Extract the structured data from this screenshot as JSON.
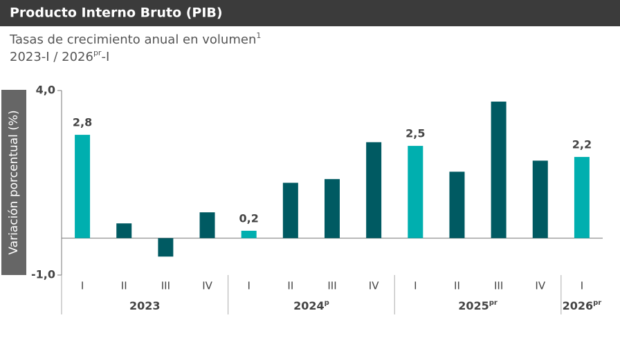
{
  "chart_data": {
    "type": "bar",
    "title": "Producto Interno Bruto (PIB)",
    "subtitle": {
      "text": "Tasas de crecimiento anual en volumen",
      "note": "1"
    },
    "period": {
      "start": "2023-I / 2026",
      "superscript": "pr",
      "end": "-I"
    },
    "y_label": "Variación porcentual (%)",
    "groups": [
      {
        "label": "2023",
        "categories": [
          "I",
          "II",
          "III",
          "IV"
        ]
      },
      {
        "label": "2024",
        "superscript": "p",
        "categories": [
          "I",
          "II",
          "III",
          "IV"
        ]
      },
      {
        "label": "2025",
        "superscript": "pr",
        "categories": [
          "I",
          "II",
          "III",
          "IV"
        ]
      },
      {
        "label": "2026",
        "superscript": "pr",
        "categories": [
          "I"
        ]
      }
    ],
    "values": [
      2.8,
      0.4,
      -0.5,
      0.7,
      0.2,
      1.5,
      1.6,
      2.6,
      2.5,
      1.8,
      3.7,
      2.1,
      2.2
    ],
    "value_labels": [
      "2,8",
      null,
      null,
      null,
      "0,2",
      null,
      null,
      null,
      "2,5",
      null,
      null,
      null,
      "2,2"
    ],
    "colors": [
      "#00afaf",
      "#005a62",
      "#005a62",
      "#005a62",
      "#00afaf",
      "#005a62",
      "#005a62",
      "#005a62",
      "#00afaf",
      "#005a62",
      "#005a62",
      "#005a62",
      "#00afaf"
    ],
    "ylim": [
      -1,
      4
    ],
    "yticks": [
      {
        "value": -1,
        "label": "-1,0"
      },
      {
        "value": 4,
        "label": "4,0"
      }
    ]
  }
}
